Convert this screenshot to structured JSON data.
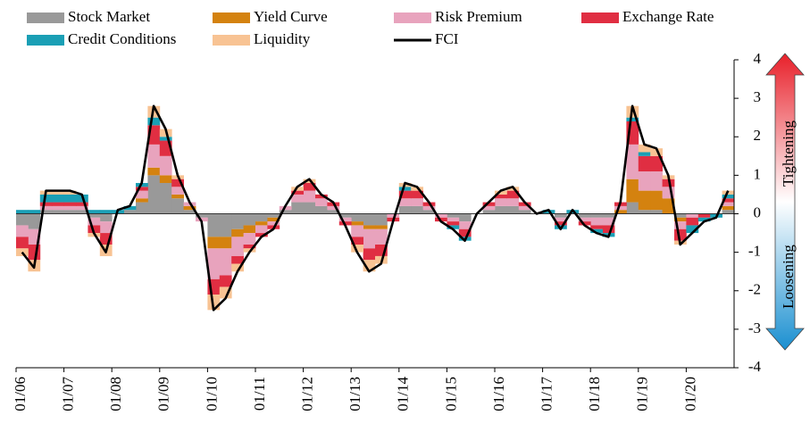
{
  "chart_data": {
    "type": "stacked_area",
    "categories": [
      "01/06",
      null,
      null,
      null,
      "01/07",
      null,
      null,
      null,
      "01/08",
      null,
      null,
      null,
      "01/09",
      null,
      null,
      null,
      "01/10",
      null,
      null,
      null,
      "01/11",
      null,
      null,
      null,
      "01/12",
      null,
      null,
      null,
      "01/13",
      null,
      null,
      null,
      "01/14",
      null,
      null,
      null,
      "01/15",
      null,
      null,
      null,
      "01/16",
      null,
      null,
      null,
      "01/17",
      null,
      null,
      null,
      "01/18",
      null,
      null,
      null,
      "01/19",
      null,
      null,
      null,
      "01/20",
      null,
      null,
      null
    ],
    "series": [
      {
        "name": "Stock Market",
        "color": "#999999",
        "values": [
          -0.3,
          -0.4,
          0.1,
          0.1,
          0.1,
          0.1,
          -0.1,
          -0.2,
          0,
          0.1,
          0.3,
          1.0,
          0.8,
          0.4,
          0.1,
          -0.1,
          -0.6,
          -0.6,
          -0.4,
          -0.3,
          -0.2,
          -0.1,
          0.1,
          0.3,
          0.3,
          0.2,
          0.1,
          -0.1,
          -0.2,
          -0.3,
          -0.3,
          0,
          0.2,
          0.2,
          0.1,
          0,
          -0.1,
          -0.2,
          0,
          0.1,
          0.2,
          0.2,
          0.1,
          0,
          0,
          -0.1,
          0,
          -0.1,
          -0.1,
          -0.1,
          0,
          0.3,
          0.1,
          0.1,
          0,
          -0.1,
          0,
          0,
          0,
          0.1
        ]
      },
      {
        "name": "Yield Curve",
        "color": "#d4820f",
        "values": [
          0,
          0,
          0,
          0,
          0,
          0,
          0,
          0,
          0,
          0,
          0.1,
          0.2,
          0.2,
          0.1,
          0.1,
          0,
          -0.3,
          -0.3,
          -0.2,
          -0.2,
          -0.1,
          -0.1,
          0,
          0,
          0,
          0,
          0,
          0,
          -0.1,
          -0.1,
          -0.1,
          0,
          0,
          0,
          0,
          0,
          0,
          0,
          0,
          0,
          0,
          0,
          0,
          0,
          0,
          0,
          0,
          0,
          0,
          0,
          0.1,
          0.6,
          0.5,
          0.5,
          0.4,
          -0.1,
          0,
          0,
          0,
          0.1
        ]
      },
      {
        "name": "Risk Premium",
        "color": "#e8a3bd",
        "values": [
          -0.3,
          -0.4,
          0.1,
          0.1,
          0.1,
          0.1,
          -0.2,
          -0.3,
          0,
          0,
          0.2,
          0.6,
          0.5,
          0.2,
          0.1,
          -0.1,
          -0.8,
          -0.7,
          -0.5,
          -0.3,
          -0.2,
          -0.1,
          0.1,
          0.2,
          0.3,
          0.2,
          0.1,
          -0.1,
          -0.3,
          -0.5,
          -0.4,
          -0.1,
          0.2,
          0.2,
          0.1,
          -0.1,
          -0.1,
          -0.2,
          0,
          0.1,
          0.2,
          0.2,
          0.1,
          0,
          0,
          -0.1,
          0,
          -0.1,
          -0.2,
          -0.2,
          0.1,
          0.9,
          0.5,
          0.5,
          0.3,
          -0.2,
          -0.1,
          0,
          0,
          0.1
        ]
      },
      {
        "name": "Exchange Rate",
        "color": "#e02e42",
        "values": [
          -0.3,
          -0.4,
          0.1,
          0.1,
          0.1,
          0.1,
          -0.2,
          -0.3,
          0,
          0,
          0.1,
          0.5,
          0.4,
          0.2,
          0,
          0,
          -0.4,
          -0.3,
          -0.2,
          -0.1,
          -0.1,
          -0.1,
          0,
          0.1,
          0.2,
          0.1,
          0.1,
          -0.1,
          -0.2,
          -0.3,
          -0.3,
          -0.1,
          0.2,
          0.2,
          0.1,
          -0.1,
          -0.1,
          -0.2,
          0,
          0.1,
          0.1,
          0.2,
          0.1,
          0,
          0,
          -0.1,
          0,
          -0.1,
          -0.1,
          -0.2,
          0.1,
          0.6,
          0.4,
          0.4,
          0.2,
          -0.3,
          -0.2,
          -0.1,
          0,
          0.1
        ]
      },
      {
        "name": "Credit Conditions",
        "color": "#1a9fb5",
        "values": [
          0.1,
          0.1,
          0.2,
          0.2,
          0.2,
          0.2,
          0.1,
          0.1,
          0.1,
          0.1,
          0.1,
          0.2,
          0.1,
          0,
          0,
          0,
          0,
          0,
          0,
          0,
          0,
          0,
          0,
          0,
          0,
          0,
          0,
          0,
          0,
          0,
          0,
          0,
          0.1,
          0,
          0,
          0,
          -0.1,
          -0.1,
          0,
          0,
          0,
          0,
          0,
          0,
          0.1,
          -0.1,
          0.1,
          0,
          -0.1,
          -0.1,
          0,
          0.1,
          0.1,
          0,
          0,
          0,
          -0.2,
          -0.1,
          -0.1,
          0.1
        ]
      },
      {
        "name": "Liquidity",
        "color": "#f8c393",
        "values": [
          -0.2,
          -0.3,
          0.1,
          0.1,
          0.1,
          0,
          -0.1,
          -0.3,
          0,
          0,
          0,
          0.3,
          0.2,
          0.1,
          0,
          0,
          -0.4,
          -0.3,
          -0.2,
          -0.1,
          0,
          0,
          0,
          0.1,
          0.1,
          0,
          0,
          0,
          -0.2,
          -0.3,
          -0.2,
          0,
          0.1,
          0.1,
          0,
          0,
          0,
          0,
          0,
          0,
          0.1,
          0.1,
          0,
          0,
          0,
          0,
          0,
          0,
          0,
          0,
          0,
          0.3,
          0.2,
          0.2,
          0.1,
          -0.1,
          0,
          0,
          0,
          0.1
        ]
      },
      {
        "name": "FCI",
        "color": "#000000",
        "type": "line",
        "values": [
          -1.0,
          -1.4,
          0.6,
          0.6,
          0.6,
          0.5,
          -0.5,
          -1.0,
          0.1,
          0.2,
          0.8,
          2.8,
          2.2,
          1.0,
          0.3,
          -0.2,
          -2.5,
          -2.2,
          -1.5,
          -1.0,
          -0.6,
          -0.4,
          0.2,
          0.7,
          0.9,
          0.5,
          0.3,
          -0.3,
          -1.0,
          -1.5,
          -1.3,
          -0.2,
          0.8,
          0.7,
          0.3,
          -0.2,
          -0.4,
          -0.7,
          0,
          0.3,
          0.6,
          0.7,
          0.3,
          0,
          0.1,
          -0.4,
          0.1,
          -0.3,
          -0.5,
          -0.6,
          0.3,
          2.8,
          1.8,
          1.7,
          1.0,
          -0.8,
          -0.5,
          -0.2,
          -0.1,
          0.6
        ]
      }
    ],
    "ylim": [
      -4,
      4
    ],
    "yticks": [
      -4,
      -3,
      -2,
      -1,
      0,
      1,
      2,
      3,
      4
    ],
    "annotations": [
      "Tightening",
      "Loosening"
    ]
  }
}
